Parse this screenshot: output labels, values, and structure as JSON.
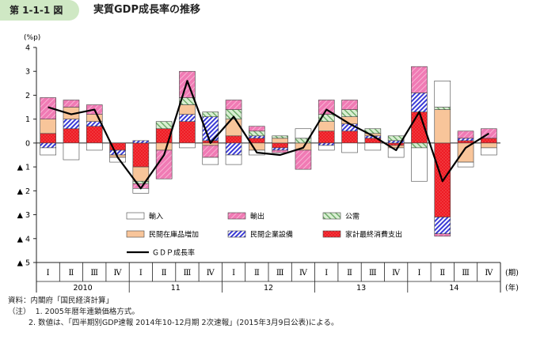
{
  "header": {
    "figure_label": "第 1-1-1 図",
    "title": "実質GDP成長率の推移"
  },
  "colors": {
    "imports": "#ffffff",
    "exports": "#f07ab4",
    "public": "#c9e7c0",
    "inventory": "#f8c59a",
    "capex": "#3a3ad6",
    "consumption": "#ee1c24",
    "gdp": "#000000"
  },
  "chart_data": {
    "type": "bar",
    "stacked": true,
    "ylabel": "(%p)",
    "ylim": [
      -5,
      4
    ],
    "yticks": [
      {
        "value": 4,
        "label": "4"
      },
      {
        "value": 3,
        "label": "3"
      },
      {
        "value": 2,
        "label": "2"
      },
      {
        "value": 1,
        "label": "1"
      },
      {
        "value": 0,
        "label": "0"
      },
      {
        "value": -1,
        "label": "▲ 1"
      },
      {
        "value": -2,
        "label": "▲ 2"
      },
      {
        "value": -3,
        "label": "▲ 3"
      },
      {
        "value": -4,
        "label": "▲ 4"
      },
      {
        "value": -5,
        "label": "▲ 5"
      }
    ],
    "quarter_unit": "(期)",
    "year_unit": "(年)",
    "quarters": [
      "Ⅰ",
      "Ⅱ",
      "Ⅲ",
      "Ⅳ",
      "Ⅰ",
      "Ⅱ",
      "Ⅲ",
      "Ⅳ",
      "Ⅰ",
      "Ⅱ",
      "Ⅲ",
      "Ⅳ",
      "Ⅰ",
      "Ⅱ",
      "Ⅲ",
      "Ⅳ",
      "Ⅰ",
      "Ⅱ",
      "Ⅲ",
      "Ⅳ"
    ],
    "years": [
      "2010",
      "11",
      "12",
      "13",
      "14"
    ],
    "series": [
      {
        "key": "consumption",
        "name": "家計最終消費支出",
        "values": [
          0.4,
          0.6,
          0.7,
          -0.3,
          -1.0,
          0.6,
          0.9,
          0.1,
          0.3,
          0.2,
          -0.2,
          0.0,
          0.5,
          0.5,
          0.2,
          -0.1,
          1.3,
          -3.1,
          0.1,
          0.2
        ]
      },
      {
        "key": "capex",
        "name": "民間企業設備",
        "values": [
          -0.2,
          0.4,
          0.2,
          -0.2,
          0.1,
          0.0,
          0.3,
          1.0,
          -0.5,
          0.1,
          -0.1,
          0.0,
          -0.1,
          0.3,
          0.1,
          0.1,
          0.8,
          -0.7,
          0.1,
          0.0
        ]
      },
      {
        "key": "inventory",
        "name": "民間在庫品増加",
        "values": [
          0.6,
          0.5,
          0.3,
          -0.1,
          -0.6,
          -0.3,
          0.4,
          -0.1,
          0.7,
          -0.3,
          0.2,
          -0.3,
          0.4,
          0.3,
          0.1,
          -0.1,
          0.0,
          1.4,
          -0.8,
          -0.2
        ]
      },
      {
        "key": "public",
        "name": "公需",
        "values": [
          0.0,
          0.0,
          0.0,
          0.0,
          -0.1,
          0.3,
          0.3,
          0.2,
          0.4,
          0.2,
          0.1,
          0.2,
          0.3,
          0.3,
          0.2,
          0.2,
          -0.2,
          0.1,
          0.0,
          0.0
        ]
      },
      {
        "key": "exports",
        "name": "輸出",
        "values": [
          0.9,
          0.3,
          0.4,
          0.0,
          -0.2,
          -1.2,
          1.1,
          -0.5,
          0.4,
          0.2,
          -0.1,
          -0.8,
          0.6,
          0.4,
          0.0,
          0.0,
          1.1,
          -0.1,
          0.3,
          0.4
        ]
      },
      {
        "key": "imports",
        "name": "輸入",
        "values": [
          -0.3,
          -0.7,
          -0.3,
          -0.2,
          -0.2,
          0.0,
          -0.2,
          -0.3,
          -0.4,
          -0.2,
          0.0,
          0.4,
          -0.2,
          -0.4,
          -0.3,
          -0.4,
          -1.4,
          1.1,
          -0.2,
          -0.3
        ]
      }
    ],
    "line": {
      "key": "gdp",
      "name": "ＧＤＰ成長率",
      "values": [
        1.5,
        1.2,
        1.4,
        -0.6,
        -1.9,
        -0.5,
        2.6,
        0.0,
        1.1,
        -0.4,
        -0.5,
        -0.2,
        1.4,
        0.8,
        0.3,
        -0.3,
        1.3,
        -1.6,
        -0.2,
        0.4
      ]
    },
    "legend_rows": [
      [
        "imports",
        "exports",
        "public"
      ],
      [
        "inventory",
        "capex",
        "consumption"
      ],
      [
        "gdp"
      ]
    ]
  },
  "notes": {
    "source": "資料：内閣府「国民経済計算」",
    "note_label": "（注）",
    "note1": "1. 2005年暦年連鎖価格方式。",
    "note2": "2. 数値は、「四半期別GDP速報 2014年10-12月期 2次速報」(2015年3月9日公表)による。"
  }
}
